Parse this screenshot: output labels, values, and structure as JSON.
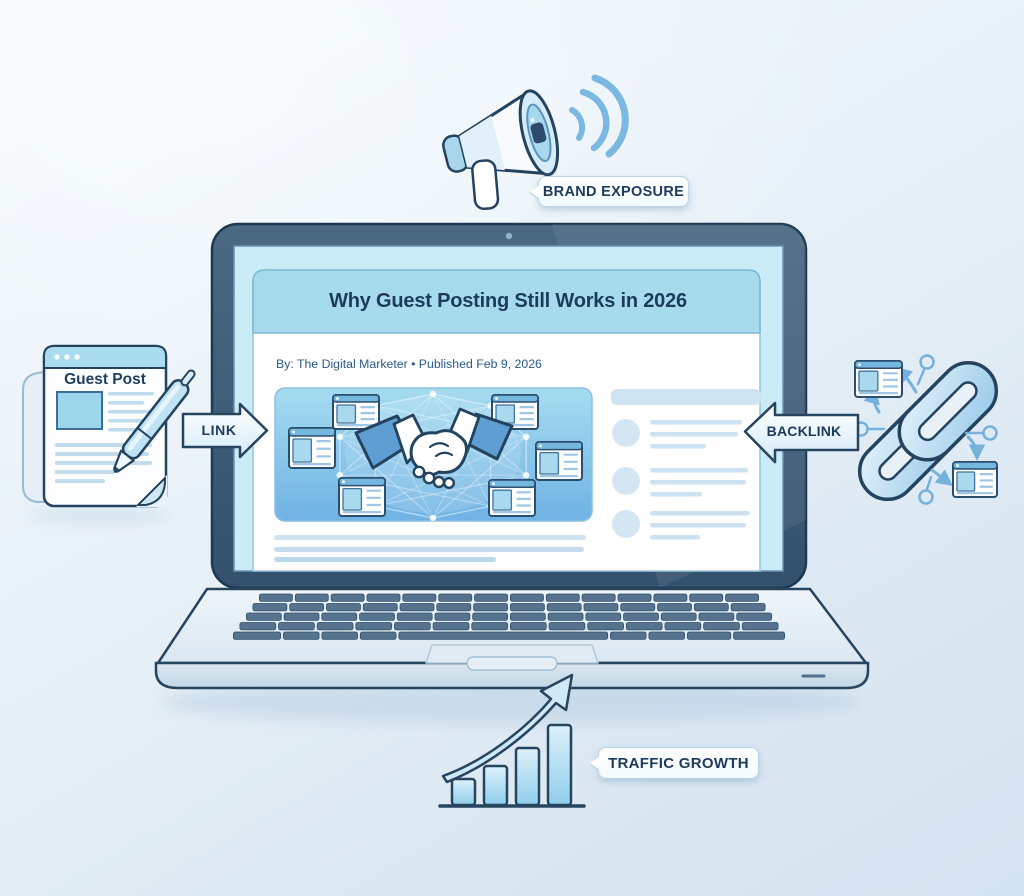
{
  "article": {
    "title": "Why Guest Posting Still Works in 2026",
    "byline": "By: The Digital Marketer • Published Feb 9, 2026"
  },
  "document": {
    "title": "Guest Post"
  },
  "callouts": {
    "brand_exposure": "BRAND EXPOSURE",
    "traffic_growth": "TRAFFIC GROWTH"
  },
  "arrows": {
    "link": "LINK",
    "backlink": "BACKLINK"
  },
  "icons": {
    "megaphone": "megaphone-icon",
    "sound_waves": "sound-waves-icon",
    "laptop": "laptop-icon",
    "handshake": "handshake-icon",
    "guest_post_document": "document-icon",
    "pen": "pen-icon",
    "chain_link": "chain-link-icon",
    "bar_chart": "bar-chart-icon",
    "growth_arrow": "growth-arrow-icon"
  },
  "colors": {
    "outline_navy": "#24435e",
    "text_navy": "#1d3b5c",
    "byline_blue": "#29598a",
    "accent_blue": "#74b2dc",
    "screen_cyan": "#c9ecf7",
    "header_band": "#a6dbee",
    "hero_top": "#a6dcf0",
    "hero_bottom": "#6fb2e4",
    "sleeve_blue": "#5e9ed2",
    "key_slate": "#55738f",
    "label_bg": "#ffffff"
  },
  "chart_data": {
    "type": "bar",
    "categories": [
      "",
      "",
      "",
      ""
    ],
    "values": [
      26,
      39,
      57,
      80
    ],
    "title": "TRAFFIC GROWTH",
    "xlabel": "",
    "ylabel": "",
    "trend": "up",
    "note": "decorative traffic-growth bars, relative heights in px"
  }
}
